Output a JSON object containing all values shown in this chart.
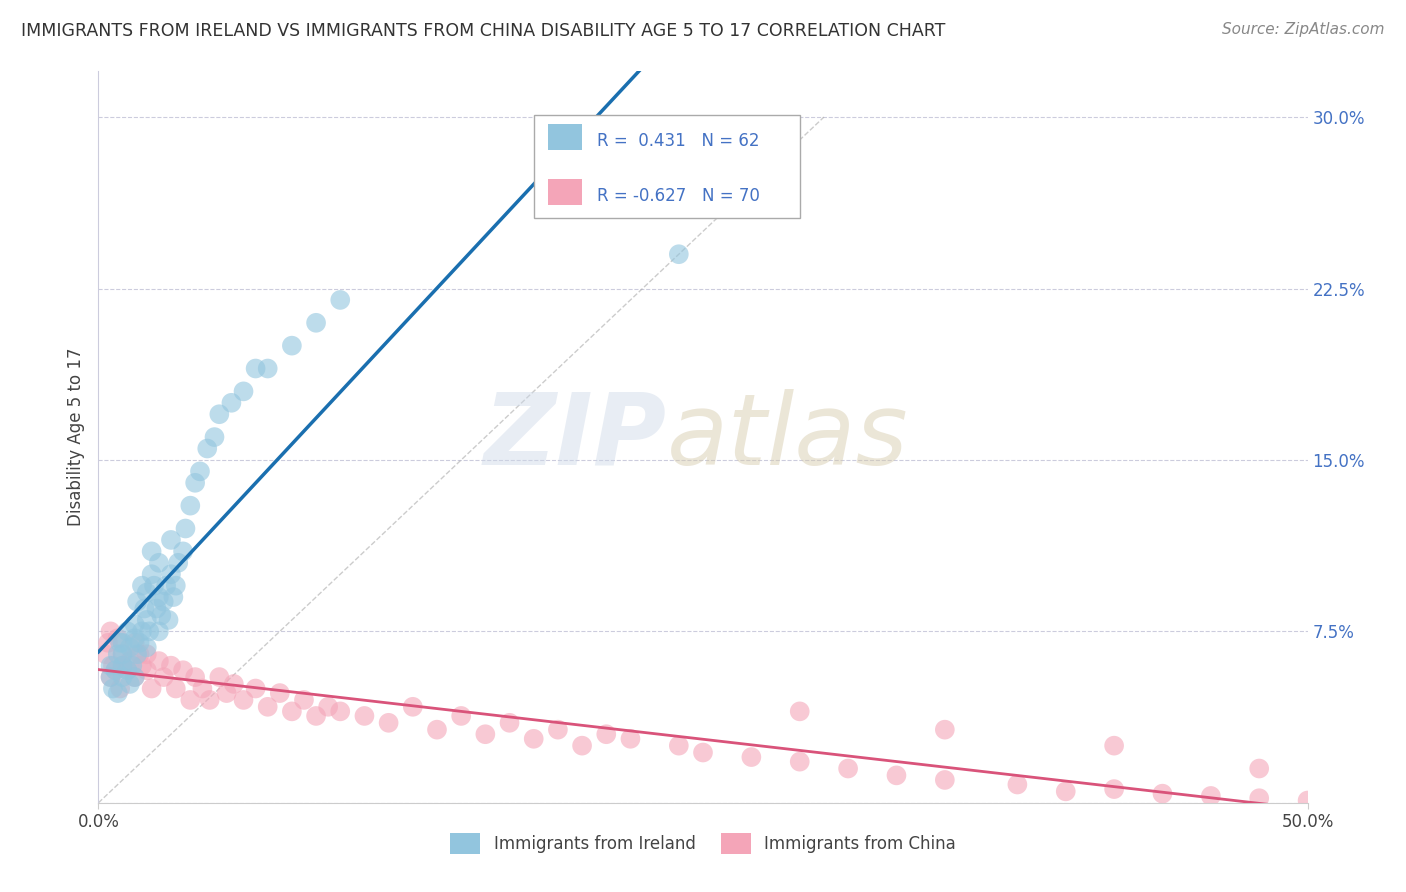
{
  "title": "IMMIGRANTS FROM IRELAND VS IMMIGRANTS FROM CHINA DISABILITY AGE 5 TO 17 CORRELATION CHART",
  "source": "Source: ZipAtlas.com",
  "ylabel": "Disability Age 5 to 17",
  "ytick_vals": [
    0.0,
    0.075,
    0.15,
    0.225,
    0.3
  ],
  "ytick_labels": [
    "",
    "7.5%",
    "15.0%",
    "22.5%",
    "30.0%"
  ],
  "xlim": [
    0.0,
    0.5
  ],
  "ylim": [
    0.0,
    0.32
  ],
  "ireland_R": 0.431,
  "ireland_N": 62,
  "china_R": -0.627,
  "china_N": 70,
  "ireland_color": "#92c5de",
  "china_color": "#f4a5b8",
  "ireland_line_color": "#1a6faf",
  "china_line_color": "#d9537a",
  "background_color": "#ffffff",
  "grid_color": "#ccccdd",
  "legend_ireland_label": "R =  0.431   N = 62",
  "legend_china_label": "R = -0.627   N = 70",
  "bottom_ireland_label": "Immigrants from Ireland",
  "bottom_china_label": "Immigrants from China",
  "ireland_scatter_x": [
    0.005,
    0.005,
    0.006,
    0.007,
    0.008,
    0.008,
    0.009,
    0.01,
    0.01,
    0.01,
    0.01,
    0.012,
    0.012,
    0.013,
    0.013,
    0.014,
    0.015,
    0.015,
    0.015,
    0.016,
    0.016,
    0.017,
    0.018,
    0.018,
    0.019,
    0.02,
    0.02,
    0.02,
    0.021,
    0.022,
    0.022,
    0.023,
    0.024,
    0.025,
    0.025,
    0.025,
    0.026,
    0.027,
    0.028,
    0.029,
    0.03,
    0.03,
    0.031,
    0.032,
    0.033,
    0.035,
    0.036,
    0.038,
    0.04,
    0.042,
    0.045,
    0.048,
    0.05,
    0.055,
    0.06,
    0.065,
    0.07,
    0.08,
    0.09,
    0.1,
    0.19,
    0.24
  ],
  "ireland_scatter_y": [
    0.055,
    0.06,
    0.05,
    0.058,
    0.065,
    0.048,
    0.07,
    0.055,
    0.06,
    0.065,
    0.07,
    0.058,
    0.075,
    0.052,
    0.068,
    0.06,
    0.072,
    0.078,
    0.055,
    0.065,
    0.088,
    0.07,
    0.095,
    0.075,
    0.085,
    0.092,
    0.068,
    0.08,
    0.075,
    0.1,
    0.11,
    0.095,
    0.085,
    0.09,
    0.105,
    0.075,
    0.082,
    0.088,
    0.095,
    0.08,
    0.1,
    0.115,
    0.09,
    0.095,
    0.105,
    0.11,
    0.12,
    0.13,
    0.14,
    0.145,
    0.155,
    0.16,
    0.17,
    0.175,
    0.18,
    0.19,
    0.19,
    0.2,
    0.21,
    0.22,
    0.265,
    0.24
  ],
  "china_scatter_x": [
    0.003,
    0.004,
    0.005,
    0.005,
    0.006,
    0.007,
    0.008,
    0.009,
    0.01,
    0.01,
    0.012,
    0.013,
    0.015,
    0.015,
    0.017,
    0.018,
    0.02,
    0.02,
    0.022,
    0.025,
    0.027,
    0.03,
    0.032,
    0.035,
    0.038,
    0.04,
    0.043,
    0.046,
    0.05,
    0.053,
    0.056,
    0.06,
    0.065,
    0.07,
    0.075,
    0.08,
    0.085,
    0.09,
    0.095,
    0.1,
    0.11,
    0.12,
    0.13,
    0.14,
    0.15,
    0.16,
    0.17,
    0.18,
    0.19,
    0.2,
    0.21,
    0.22,
    0.24,
    0.25,
    0.27,
    0.29,
    0.31,
    0.33,
    0.35,
    0.38,
    0.4,
    0.42,
    0.44,
    0.46,
    0.48,
    0.5,
    0.29,
    0.35,
    0.42,
    0.48
  ],
  "china_scatter_y": [
    0.065,
    0.07,
    0.055,
    0.075,
    0.06,
    0.058,
    0.072,
    0.05,
    0.065,
    0.06,
    0.058,
    0.062,
    0.07,
    0.055,
    0.065,
    0.06,
    0.058,
    0.065,
    0.05,
    0.062,
    0.055,
    0.06,
    0.05,
    0.058,
    0.045,
    0.055,
    0.05,
    0.045,
    0.055,
    0.048,
    0.052,
    0.045,
    0.05,
    0.042,
    0.048,
    0.04,
    0.045,
    0.038,
    0.042,
    0.04,
    0.038,
    0.035,
    0.042,
    0.032,
    0.038,
    0.03,
    0.035,
    0.028,
    0.032,
    0.025,
    0.03,
    0.028,
    0.025,
    0.022,
    0.02,
    0.018,
    0.015,
    0.012,
    0.01,
    0.008,
    0.005,
    0.006,
    0.004,
    0.003,
    0.002,
    0.001,
    0.04,
    0.032,
    0.025,
    0.015
  ]
}
